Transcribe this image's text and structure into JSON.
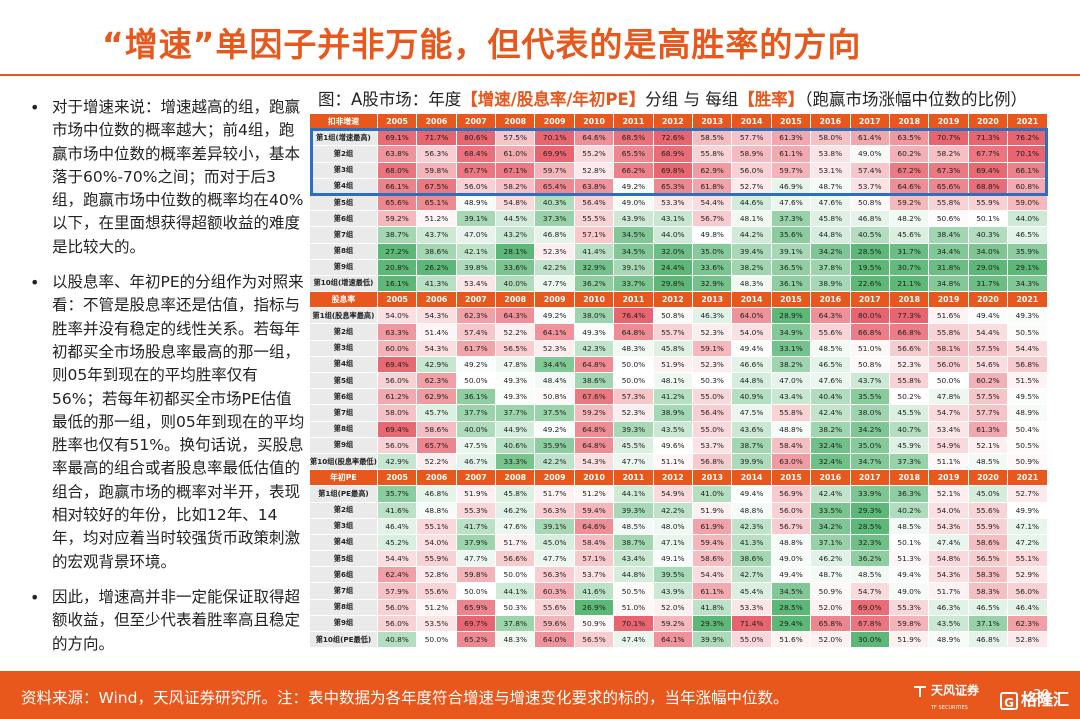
{
  "title": "“增速”单因子并非万能，但代表的是高胜率的方向",
  "bullets": [
    "对于增速来说：增速越高的组，跑赢市场中位数的概率越大；前4组，跑赢市场中位数的概率差异较小，基本落于60%-70%之间；而对于后3组，跑赢市场中位数的概率均在40%以下，在里面想获得超额收益的难度是比较大的。",
    "以股息率、年初PE的分组作为对照来看：不管是股息率还是估值，指标与胜率并没有稳定的线性关系。若每年初都买全市场股息率最高的那一组，则05年到现在的平均胜率仅有56%；若每年初都买全市场PE估值最低的那一组，则05年到现在的平均胜率也仅有51%。换句话说，买股息率最高的组合或者股息率最低估值的组合，跑赢市场的概率对半开，表现相对较好的年份，比如12年、14年，均对应着当时较强货币政策刺激的宏观背景环境。",
    "因此，增速高并非一定能保证取得超额收益，但至少代表着胜率高且稳定的方向。"
  ],
  "figure_title": {
    "prefix": "图：A股市场：年度",
    "hl1": "【增速/股息率/年初PE】",
    "mid": "分组 与 每组",
    "hl2": "【胜率】",
    "suffix": "（跑赢市场涨幅中位数的比例）"
  },
  "years": [
    "2005",
    "2006",
    "2007",
    "2008",
    "2009",
    "2010",
    "2011",
    "2012",
    "2013",
    "2014",
    "2015",
    "2016",
    "2017",
    "2018",
    "2019",
    "2020",
    "2021"
  ],
  "tables": [
    {
      "header": "扣非增速",
      "rows": [
        {
          "label": "第1组(增速最高)",
          "values": [
            "69.1%",
            "71.7%",
            "80.6%",
            "57.5%",
            "70.1%",
            "64.6%",
            "68.5%",
            "72.6%",
            "58.5%",
            "57.7%",
            "61.3%",
            "58.0%",
            "61.4%",
            "63.5%",
            "70.7%",
            "71.3%",
            "76.2%"
          ]
        },
        {
          "label": "第2组",
          "values": [
            "63.8%",
            "56.3%",
            "68.4%",
            "61.0%",
            "69.9%",
            "55.2%",
            "65.5%",
            "68.9%",
            "55.8%",
            "58.9%",
            "61.1%",
            "53.8%",
            "49.0%",
            "60.2%",
            "58.2%",
            "67.7%",
            "70.1%"
          ]
        },
        {
          "label": "第3组",
          "values": [
            "68.0%",
            "59.8%",
            "67.7%",
            "67.1%",
            "59.7%",
            "52.8%",
            "66.2%",
            "69.8%",
            "62.9%",
            "56.0%",
            "59.7%",
            "53.1%",
            "57.4%",
            "67.2%",
            "67.3%",
            "69.4%",
            "66.1%"
          ]
        },
        {
          "label": "第4组",
          "values": [
            "66.1%",
            "67.5%",
            "56.0%",
            "58.2%",
            "65.4%",
            "63.8%",
            "49.2%",
            "65.3%",
            "61.8%",
            "52.7%",
            "46.9%",
            "48.7%",
            "53.7%",
            "64.6%",
            "65.6%",
            "68.8%",
            "60.8%"
          ]
        },
        {
          "label": "第5组",
          "values": [
            "65.6%",
            "65.1%",
            "48.9%",
            "54.8%",
            "40.3%",
            "56.4%",
            "49.0%",
            "53.3%",
            "54.4%",
            "44.6%",
            "47.6%",
            "47.6%",
            "50.8%",
            "59.2%",
            "55.8%",
            "55.9%",
            "59.0%"
          ]
        },
        {
          "label": "第6组",
          "values": [
            "59.2%",
            "51.2%",
            "39.1%",
            "44.5%",
            "37.3%",
            "55.5%",
            "43.9%",
            "43.1%",
            "56.7%",
            "48.1%",
            "37.3%",
            "45.8%",
            "46.8%",
            "48.2%",
            "50.6%",
            "50.1%",
            "44.0%"
          ]
        },
        {
          "label": "第7组",
          "values": [
            "38.7%",
            "43.7%",
            "47.0%",
            "43.2%",
            "46.8%",
            "57.1%",
            "34.5%",
            "44.0%",
            "49.8%",
            "44.2%",
            "35.6%",
            "44.8%",
            "40.5%",
            "45.6%",
            "38.4%",
            "40.3%",
            "46.5%"
          ]
        },
        {
          "label": "第8组",
          "values": [
            "27.2%",
            "38.6%",
            "42.1%",
            "28.1%",
            "52.3%",
            "41.4%",
            "34.5%",
            "32.0%",
            "35.0%",
            "39.4%",
            "39.1%",
            "34.2%",
            "28.5%",
            "31.7%",
            "34.4%",
            "34.0%",
            "35.9%"
          ]
        },
        {
          "label": "第9组",
          "values": [
            "20.8%",
            "26.2%",
            "39.8%",
            "33.6%",
            "42.2%",
            "32.9%",
            "39.1%",
            "24.4%",
            "33.6%",
            "38.2%",
            "36.5%",
            "37.8%",
            "19.5%",
            "30.7%",
            "31.8%",
            "29.0%",
            "29.1%"
          ]
        },
        {
          "label": "第10组(增速最低)",
          "values": [
            "16.1%",
            "41.3%",
            "53.4%",
            "40.0%",
            "47.7%",
            "36.2%",
            "33.7%",
            "29.8%",
            "32.9%",
            "48.3%",
            "36.1%",
            "38.9%",
            "22.6%",
            "21.1%",
            "34.8%",
            "31.7%",
            "34.3%"
          ]
        }
      ]
    },
    {
      "header": "股息率",
      "rows": [
        {
          "label": "第1组(股息率最高)",
          "values": [
            "54.0%",
            "54.3%",
            "62.3%",
            "64.3%",
            "49.2%",
            "38.0%",
            "76.4%",
            "50.8%",
            "46.3%",
            "64.0%",
            "28.9%",
            "64.3%",
            "80.0%",
            "77.3%",
            "51.6%",
            "49.4%",
            "49.3%"
          ]
        },
        {
          "label": "第2组",
          "values": [
            "63.3%",
            "51.4%",
            "57.4%",
            "52.2%",
            "64.1%",
            "49.3%",
            "64.8%",
            "55.7%",
            "52.3%",
            "54.0%",
            "34.9%",
            "55.6%",
            "66.8%",
            "66.8%",
            "55.8%",
            "54.4%",
            "50.5%"
          ]
        },
        {
          "label": "第3组",
          "values": [
            "60.0%",
            "54.3%",
            "61.7%",
            "56.5%",
            "52.3%",
            "42.3%",
            "48.3%",
            "45.8%",
            "59.1%",
            "49.4%",
            "33.1%",
            "48.5%",
            "51.0%",
            "56.6%",
            "58.1%",
            "57.5%",
            "54.4%"
          ]
        },
        {
          "label": "第4组",
          "values": [
            "69.4%",
            "42.9%",
            "49.2%",
            "47.8%",
            "34.4%",
            "64.8%",
            "50.0%",
            "51.9%",
            "52.3%",
            "46.6%",
            "38.2%",
            "46.5%",
            "50.8%",
            "52.3%",
            "56.0%",
            "54.6%",
            "56.8%"
          ]
        },
        {
          "label": "第5组",
          "values": [
            "56.0%",
            "62.3%",
            "50.0%",
            "49.3%",
            "48.4%",
            "38.6%",
            "50.0%",
            "48.1%",
            "50.3%",
            "44.8%",
            "47.0%",
            "47.6%",
            "43.7%",
            "55.8%",
            "50.0%",
            "60.2%",
            "51.5%"
          ]
        },
        {
          "label": "第6组",
          "values": [
            "61.2%",
            "62.9%",
            "36.1%",
            "49.3%",
            "50.8%",
            "67.6%",
            "57.3%",
            "41.2%",
            "55.0%",
            "40.9%",
            "43.4%",
            "40.4%",
            "35.5%",
            "50.2%",
            "47.8%",
            "57.5%",
            "49.5%"
          ]
        },
        {
          "label": "第7组",
          "values": [
            "58.0%",
            "45.7%",
            "37.7%",
            "37.7%",
            "37.5%",
            "59.2%",
            "52.3%",
            "38.9%",
            "56.4%",
            "47.5%",
            "55.8%",
            "42.4%",
            "38.0%",
            "45.5%",
            "54.7%",
            "57.7%",
            "48.9%"
          ]
        },
        {
          "label": "第8组",
          "values": [
            "69.4%",
            "58.6%",
            "40.0%",
            "44.9%",
            "49.2%",
            "64.8%",
            "39.3%",
            "43.5%",
            "55.0%",
            "43.6%",
            "48.8%",
            "38.2%",
            "34.2%",
            "40.7%",
            "53.4%",
            "61.3%",
            "50.4%"
          ]
        },
        {
          "label": "第9组",
          "values": [
            "56.0%",
            "65.7%",
            "47.5%",
            "40.6%",
            "35.9%",
            "64.8%",
            "45.5%",
            "49.6%",
            "53.7%",
            "38.7%",
            "58.4%",
            "32.4%",
            "35.0%",
            "45.9%",
            "54.9%",
            "52.1%",
            "50.5%"
          ]
        },
        {
          "label": "第10组(股息率最低)",
          "values": [
            "42.9%",
            "52.2%",
            "46.7%",
            "33.3%",
            "42.2%",
            "54.3%",
            "47.7%",
            "51.1%",
            "56.8%",
            "39.9%",
            "63.0%",
            "32.4%",
            "34.7%",
            "37.3%",
            "51.1%",
            "48.5%",
            "50.9%"
          ]
        }
      ]
    },
    {
      "header": "年初PE",
      "rows": [
        {
          "label": "第1组(PE最高)",
          "values": [
            "35.7%",
            "46.8%",
            "51.9%",
            "45.8%",
            "51.7%",
            "51.2%",
            "44.1%",
            "54.9%",
            "41.0%",
            "49.4%",
            "56.9%",
            "42.4%",
            "33.9%",
            "36.3%",
            "52.1%",
            "45.0%",
            "52.7%"
          ]
        },
        {
          "label": "第2组",
          "values": [
            "41.6%",
            "48.8%",
            "55.3%",
            "46.2%",
            "56.3%",
            "59.4%",
            "39.3%",
            "42.2%",
            "51.9%",
            "48.8%",
            "56.0%",
            "33.5%",
            "29.3%",
            "40.2%",
            "54.0%",
            "55.6%",
            "49.9%"
          ]
        },
        {
          "label": "第3组",
          "values": [
            "46.4%",
            "55.1%",
            "41.7%",
            "47.6%",
            "39.1%",
            "64.6%",
            "48.5%",
            "48.0%",
            "61.9%",
            "42.3%",
            "56.7%",
            "34.2%",
            "28.5%",
            "48.5%",
            "54.3%",
            "55.9%",
            "47.1%"
          ]
        },
        {
          "label": "第4组",
          "values": [
            "45.2%",
            "54.0%",
            "37.9%",
            "51.7%",
            "45.0%",
            "58.4%",
            "38.7%",
            "47.1%",
            "59.4%",
            "41.3%",
            "48.8%",
            "37.1%",
            "32.3%",
            "50.1%",
            "47.4%",
            "58.6%",
            "47.2%"
          ]
        },
        {
          "label": "第5组",
          "values": [
            "54.4%",
            "55.9%",
            "47.7%",
            "56.6%",
            "47.7%",
            "57.1%",
            "43.4%",
            "49.1%",
            "58.6%",
            "38.6%",
            "49.0%",
            "46.2%",
            "36.2%",
            "51.3%",
            "54.8%",
            "56.5%",
            "55.1%"
          ]
        },
        {
          "label": "第6组",
          "values": [
            "62.4%",
            "52.8%",
            "59.8%",
            "50.0%",
            "56.3%",
            "53.7%",
            "44.8%",
            "39.5%",
            "54.4%",
            "42.7%",
            "49.4%",
            "48.7%",
            "48.5%",
            "49.4%",
            "54.3%",
            "58.3%",
            "52.9%"
          ]
        },
        {
          "label": "第7组",
          "values": [
            "57.9%",
            "55.6%",
            "50.0%",
            "44.1%",
            "60.3%",
            "41.6%",
            "50.5%",
            "43.9%",
            "61.1%",
            "45.4%",
            "34.5%",
            "50.9%",
            "54.7%",
            "49.0%",
            "51.7%",
            "58.3%",
            "56.0%"
          ]
        },
        {
          "label": "第8组",
          "values": [
            "56.0%",
            "51.2%",
            "65.9%",
            "50.3%",
            "55.6%",
            "26.9%",
            "51.0%",
            "52.0%",
            "41.8%",
            "53.3%",
            "28.5%",
            "52.0%",
            "69.0%",
            "55.3%",
            "46.3%",
            "46.5%",
            "46.4%"
          ]
        },
        {
          "label": "第9组",
          "values": [
            "56.0%",
            "53.5%",
            "69.7%",
            "37.8%",
            "59.6%",
            "50.9%",
            "70.1%",
            "59.2%",
            "29.3%",
            "71.4%",
            "29.4%",
            "65.8%",
            "67.8%",
            "59.8%",
            "43.5%",
            "37.1%",
            "62.3%"
          ]
        },
        {
          "label": "第10组(PE最低)",
          "values": [
            "40.8%",
            "50.0%",
            "65.2%",
            "48.3%",
            "64.0%",
            "56.5%",
            "47.4%",
            "64.1%",
            "39.9%",
            "55.0%",
            "51.6%",
            "52.0%",
            "30.0%",
            "51.9%",
            "48.9%",
            "46.8%",
            "52.8%"
          ]
        }
      ]
    }
  ],
  "footer": {
    "note": "资料来源：Wind，天风证券研究所。注：表中数据为各年度符合增速与增速变化要求的标的，当年涨幅中位数。",
    "page": "30",
    "logo_text": "天风证券",
    "logo_sub": "TF SECURITIES",
    "watermark": "格隆汇"
  },
  "colors": {
    "accent": "#e8571c",
    "highlight_box": "#2a6fc0",
    "high": "#e8646f",
    "mid": "#ffffff",
    "low": "#5cb877"
  }
}
